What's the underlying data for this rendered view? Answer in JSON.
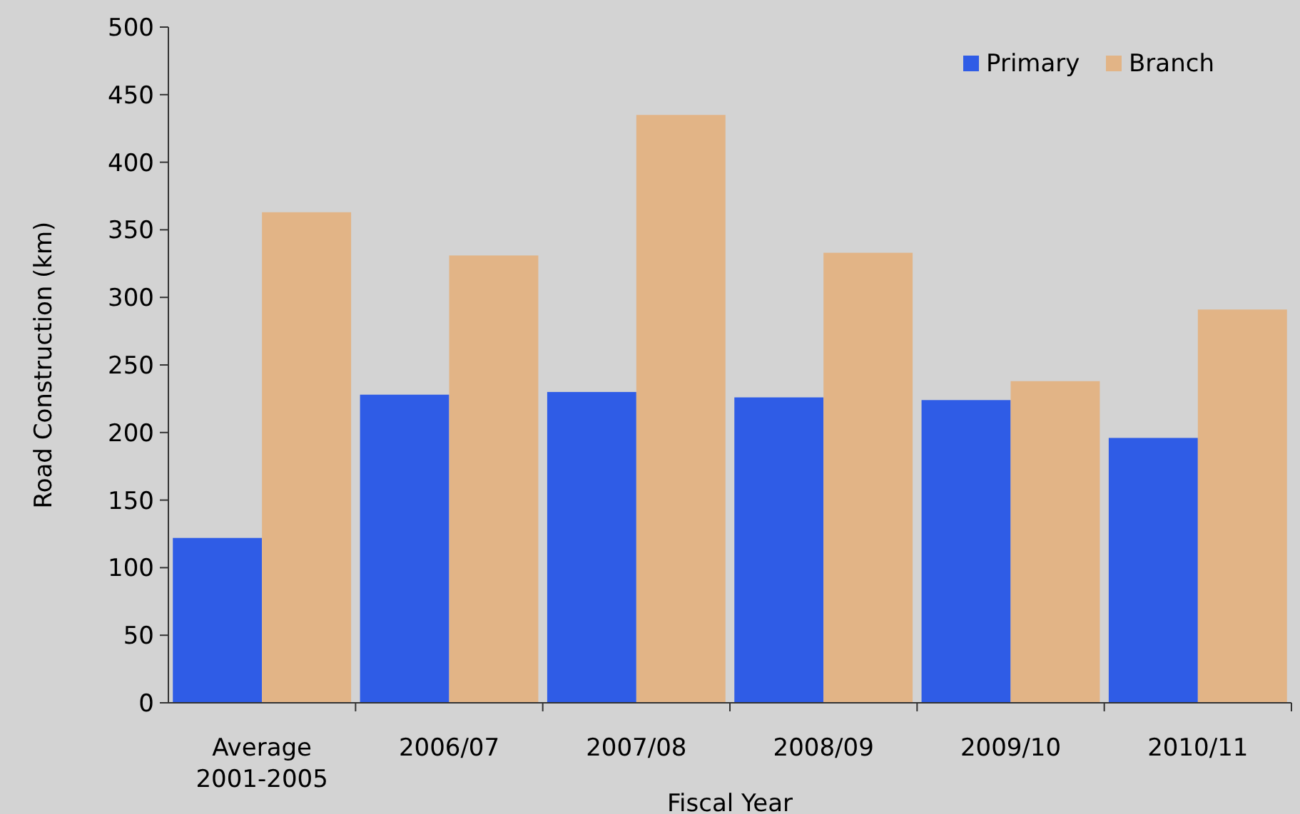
{
  "chart_data": {
    "type": "bar",
    "xlabel": "Fiscal Year",
    "ylabel": "Road Construction (km)",
    "categories": [
      "Average 2001-2005",
      "2006/07",
      "2007/08",
      "2008/09",
      "2009/10",
      "2010/11"
    ],
    "series": [
      {
        "name": "Primary",
        "color": "#2f5ce6",
        "values": [
          122,
          228,
          230,
          226,
          224,
          196
        ]
      },
      {
        "name": "Branch",
        "color": "#e2b486",
        "values": [
          363,
          331,
          435,
          333,
          238,
          291
        ]
      }
    ],
    "ylim": [
      0,
      500
    ],
    "yticks": [
      0,
      50,
      100,
      150,
      200,
      250,
      300,
      350,
      400,
      450,
      500
    ],
    "grid": false,
    "legend": "top right"
  }
}
